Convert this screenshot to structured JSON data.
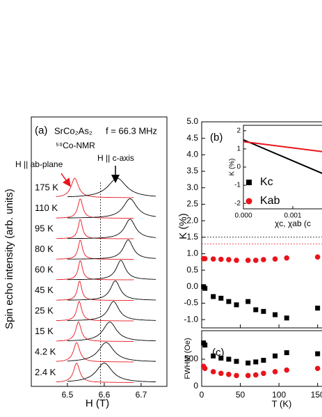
{
  "chart_data": [
    {
      "type": "line",
      "panel_label": "(a)",
      "title": "SrCo₂As₂",
      "subtitle": "⁵⁹Co-NMR",
      "annotation": "f = 66.3 MHz",
      "ab_label": "H || ab-plane",
      "c_label": "H || c-axis",
      "ylabel": "Spin echo intensity (arb. units)",
      "xlabel": "H  (T)",
      "xlim": [
        6.402,
        6.77
      ],
      "xticks": [
        6.5,
        6.6,
        6.7
      ],
      "vline": 6.59,
      "ab_color": "#e8141c",
      "c_color": "#000000",
      "spectra": [
        {
          "label": "175 K",
          "h_ab": 6.52,
          "w_ab": 0.012,
          "h_c": 6.635,
          "w_c": 0.03
        },
        {
          "label": "110 K",
          "h_ab": 6.535,
          "w_ab": 0.008,
          "h_c": 6.67,
          "w_c": 0.022
        },
        {
          "label": "95 K",
          "h_ab": 6.535,
          "w_ab": 0.007,
          "h_c": 6.67,
          "w_c": 0.018
        },
        {
          "label": "80 K",
          "h_ab": 6.535,
          "w_ab": 0.007,
          "h_c": 6.665,
          "w_c": 0.016
        },
        {
          "label": "60 K",
          "h_ab": 6.535,
          "w_ab": 0.007,
          "h_c": 6.645,
          "w_c": 0.015
        },
        {
          "label": "45 K",
          "h_ab": 6.533,
          "w_ab": 0.007,
          "h_c": 6.63,
          "w_c": 0.016
        },
        {
          "label": "25 K",
          "h_ab": 6.532,
          "w_ab": 0.008,
          "h_c": 6.625,
          "w_c": 0.018
        },
        {
          "label": "15 K",
          "h_ab": 6.53,
          "w_ab": 0.009,
          "h_c": 6.615,
          "w_c": 0.022
        },
        {
          "label": "4.2 K",
          "h_ab": 6.525,
          "w_ab": 0.01,
          "h_c": 6.605,
          "w_c": 0.025
        },
        {
          "label": "2.4 K",
          "h_ab": 6.525,
          "w_ab": 0.01,
          "h_c": 6.6,
          "w_c": 0.026
        }
      ]
    },
    {
      "type": "scatter",
      "panel_label": "(b)",
      "ylabel": "K  (%)",
      "x": [
        2.4,
        4.2,
        15,
        25,
        35,
        45,
        60,
        70,
        80,
        95,
        110,
        150
      ],
      "xlim": [
        0,
        180
      ],
      "xticks": [
        0,
        50,
        100,
        150
      ],
      "ylim": [
        -1.25,
        5.0
      ],
      "yticks": [
        {
          "value": -1,
          "label": "-1.0"
        },
        {
          "value": -0.5,
          "label": "-0.5"
        },
        {
          "value": 0,
          "label": "0.0"
        },
        {
          "value": 0.5,
          "label": "0.5"
        },
        {
          "value": 1,
          "label": "1.0"
        },
        {
          "value": 1.5,
          "label": "1.5"
        },
        {
          "value": 2,
          "label": "2.0"
        },
        {
          "value": 2.5,
          "label": "2.5"
        },
        {
          "value": 3,
          "label": "3.0"
        },
        {
          "value": 3.5,
          "label": "3.5"
        },
        {
          "value": 4,
          "label": "4.0"
        },
        {
          "value": 4.5,
          "label": "4.5"
        },
        {
          "value": 5,
          "label": "5.0"
        }
      ],
      "hlines": [
        {
          "value": 1.5,
          "color": "#000000"
        },
        {
          "value": 1.3,
          "color": "#e8141c"
        }
      ],
      "series": [
        {
          "name": "Kc",
          "marker": "square",
          "color": "#000000",
          "values": [
            0.0,
            -0.05,
            -0.3,
            -0.35,
            -0.45,
            -0.55,
            -0.45,
            -0.7,
            -0.75,
            -0.85,
            -0.95,
            -0.65
          ]
        },
        {
          "name": "Kab",
          "marker": "circle",
          "color": "#e8141c",
          "values": [
            0.85,
            0.85,
            0.84,
            0.83,
            0.82,
            0.8,
            0.8,
            0.8,
            0.82,
            0.84,
            0.87,
            0.9
          ]
        }
      ]
    },
    {
      "type": "line",
      "ylabel": "K (%)",
      "xlabel": "χc, χab (c",
      "xlim": [
        0,
        0.002
      ],
      "xticks": [
        {
          "value": 0,
          "label": "0.000"
        },
        {
          "value": 0.001,
          "label": "0.001"
        }
      ],
      "ylim": [
        -2.3,
        2.3
      ],
      "yticks": [
        -2,
        -1,
        0,
        1,
        2
      ],
      "x": [
        0,
        0.0016
      ],
      "series": [
        {
          "color": "#000000",
          "values": [
            1.5,
            -0.35
          ]
        },
        {
          "color": "#e8141c",
          "values": [
            1.4,
            0.85
          ]
        }
      ]
    },
    {
      "type": "scatter",
      "panel_label": "(c)",
      "ylabel": "FWHM (Oe)",
      "xlabel": "T  (K)",
      "x": [
        2.4,
        4.2,
        15,
        25,
        35,
        45,
        60,
        70,
        80,
        95,
        110,
        150
      ],
      "xlim": [
        0,
        180
      ],
      "xticks": [
        0,
        50,
        100,
        150
      ],
      "ylim": [
        0,
        1025
      ],
      "yticks": [
        0,
        500
      ],
      "series": [
        {
          "marker": "square",
          "color": "#000000",
          "values": [
            800,
            760,
            560,
            520,
            500,
            460,
            430,
            450,
            480,
            560,
            620,
            600
          ]
        },
        {
          "marker": "circle",
          "color": "#e8141c",
          "values": [
            370,
            330,
            270,
            240,
            220,
            200,
            200,
            210,
            240,
            270,
            300,
            330
          ]
        }
      ]
    }
  ]
}
